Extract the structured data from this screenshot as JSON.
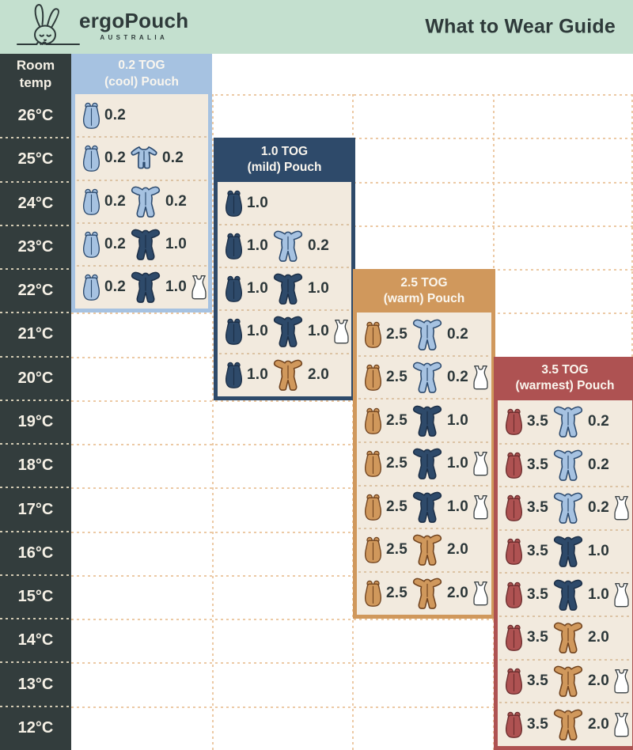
{
  "header": {
    "brand": "ergoPouch",
    "brand_sub": "AUSTRALIA",
    "title": "What to Wear Guide"
  },
  "temp_column": {
    "header": "Room\ntemp",
    "temps": [
      "26°C",
      "25°C",
      "24°C",
      "23°C",
      "22°C",
      "21°C",
      "20°C",
      "19°C",
      "18°C",
      "17°C",
      "16°C",
      "15°C",
      "14°C",
      "13°C",
      "12°C"
    ]
  },
  "colors": {
    "mint_header_bg": "#c4e0cf",
    "title_text": "#2e3a3a",
    "temp_col_bg": "#333d3d",
    "temp_text": "#f6f1e6",
    "panel_body_bg": "#f2eade",
    "value_text": "#2c3739",
    "grid_dash": "#ecc9a4",
    "garments": {
      "lightblue": {
        "fill": "#a6c2e1",
        "stroke": "#2c4a6e"
      },
      "navy": {
        "fill": "#2e4a6a",
        "stroke": "#1c2f47"
      },
      "tan": {
        "fill": "#d0985c",
        "stroke": "#70431f"
      },
      "red": {
        "fill": "#ae5252",
        "stroke": "#6b2d2d"
      },
      "white": {
        "fill": "#ffffff",
        "stroke": "#3a4144"
      }
    }
  },
  "chart_data": {
    "type": "table",
    "title": "What to Wear Guide",
    "row_label": "Room temp",
    "temperatures_c": [
      26,
      25,
      24,
      23,
      22,
      21,
      20,
      19,
      18,
      17,
      16,
      15,
      14,
      13,
      12
    ],
    "panels": [
      {
        "tog": "0.2",
        "title_line1": "0.2 TOG",
        "title_line2": "(cool) Pouch",
        "color": "#a6c2e1",
        "pouch_color": "lightblue",
        "rows": [
          {
            "temp": 26,
            "pouch_tog": "0.2",
            "suit": null,
            "singlet": false
          },
          {
            "temp": 25,
            "pouch_tog": "0.2",
            "suit": {
              "type": "romper",
              "color": "lightblue",
              "tog": "0.2"
            },
            "singlet": false
          },
          {
            "temp": 24,
            "pouch_tog": "0.2",
            "suit": {
              "type": "onesie",
              "color": "lightblue",
              "tog": "0.2"
            },
            "singlet": false
          },
          {
            "temp": 23,
            "pouch_tog": "0.2",
            "suit": {
              "type": "onesie",
              "color": "navy",
              "tog": "1.0"
            },
            "singlet": false
          },
          {
            "temp": 22,
            "pouch_tog": "0.2",
            "suit": {
              "type": "onesie",
              "color": "navy",
              "tog": "1.0"
            },
            "singlet": true
          }
        ]
      },
      {
        "tog": "1.0",
        "title_line1": "1.0 TOG",
        "title_line2": "(mild) Pouch",
        "color": "#2e4a6a",
        "pouch_color": "navy",
        "rows": [
          {
            "temp": 24,
            "pouch_tog": "1.0",
            "suit": null,
            "singlet": false
          },
          {
            "temp": 23,
            "pouch_tog": "1.0",
            "suit": {
              "type": "onesie",
              "color": "lightblue",
              "tog": "0.2"
            },
            "singlet": false
          },
          {
            "temp": 22,
            "pouch_tog": "1.0",
            "suit": {
              "type": "onesie",
              "color": "navy",
              "tog": "1.0"
            },
            "singlet": false
          },
          {
            "temp": 21,
            "pouch_tog": "1.0",
            "suit": {
              "type": "onesie",
              "color": "navy",
              "tog": "1.0"
            },
            "singlet": true
          },
          {
            "temp": 20,
            "pouch_tog": "1.0",
            "suit": {
              "type": "onesie",
              "color": "tan",
              "tog": "2.0"
            },
            "singlet": false
          }
        ]
      },
      {
        "tog": "2.5",
        "title_line1": "2.5 TOG",
        "title_line2": "(warm) Pouch",
        "color": "#d0985c",
        "pouch_color": "tan",
        "rows": [
          {
            "temp": 21,
            "pouch_tog": "2.5",
            "suit": {
              "type": "onesie",
              "color": "lightblue",
              "tog": "0.2"
            },
            "singlet": false
          },
          {
            "temp": 20,
            "pouch_tog": "2.5",
            "suit": {
              "type": "onesie",
              "color": "lightblue",
              "tog": "0.2"
            },
            "singlet": true
          },
          {
            "temp": 19,
            "pouch_tog": "2.5",
            "suit": {
              "type": "onesie",
              "color": "navy",
              "tog": "1.0"
            },
            "singlet": false
          },
          {
            "temp": 18,
            "pouch_tog": "2.5",
            "suit": {
              "type": "onesie",
              "color": "navy",
              "tog": "1.0"
            },
            "singlet": true
          },
          {
            "temp": 17,
            "pouch_tog": "2.5",
            "suit": {
              "type": "onesie",
              "color": "navy",
              "tog": "1.0"
            },
            "singlet": true
          },
          {
            "temp": 16,
            "pouch_tog": "2.5",
            "suit": {
              "type": "onesie",
              "color": "tan",
              "tog": "2.0"
            },
            "singlet": false
          },
          {
            "temp": 15,
            "pouch_tog": "2.5",
            "suit": {
              "type": "onesie",
              "color": "tan",
              "tog": "2.0"
            },
            "singlet": true
          }
        ]
      },
      {
        "tog": "3.5",
        "title_line1": "3.5 TOG",
        "title_line2": "(warmest) Pouch",
        "color": "#ae5252",
        "pouch_color": "red",
        "rows": [
          {
            "temp": 19,
            "pouch_tog": "3.5",
            "suit": {
              "type": "onesie",
              "color": "lightblue",
              "tog": "0.2"
            },
            "singlet": false
          },
          {
            "temp": 18,
            "pouch_tog": "3.5",
            "suit": {
              "type": "onesie",
              "color": "lightblue",
              "tog": "0.2"
            },
            "singlet": false
          },
          {
            "temp": 17,
            "pouch_tog": "3.5",
            "suit": {
              "type": "onesie",
              "color": "lightblue",
              "tog": "0.2"
            },
            "singlet": true
          },
          {
            "temp": 16,
            "pouch_tog": "3.5",
            "suit": {
              "type": "onesie",
              "color": "navy",
              "tog": "1.0"
            },
            "singlet": false
          },
          {
            "temp": 15,
            "pouch_tog": "3.5",
            "suit": {
              "type": "onesie",
              "color": "navy",
              "tog": "1.0"
            },
            "singlet": true
          },
          {
            "temp": 14,
            "pouch_tog": "3.5",
            "suit": {
              "type": "onesie",
              "color": "tan",
              "tog": "2.0"
            },
            "singlet": false
          },
          {
            "temp": 13,
            "pouch_tog": "3.5",
            "suit": {
              "type": "onesie",
              "color": "tan",
              "tog": "2.0"
            },
            "singlet": true
          },
          {
            "temp": 12,
            "pouch_tog": "3.5",
            "suit": {
              "type": "onesie",
              "color": "tan",
              "tog": "2.0"
            },
            "singlet": true
          }
        ]
      }
    ]
  }
}
